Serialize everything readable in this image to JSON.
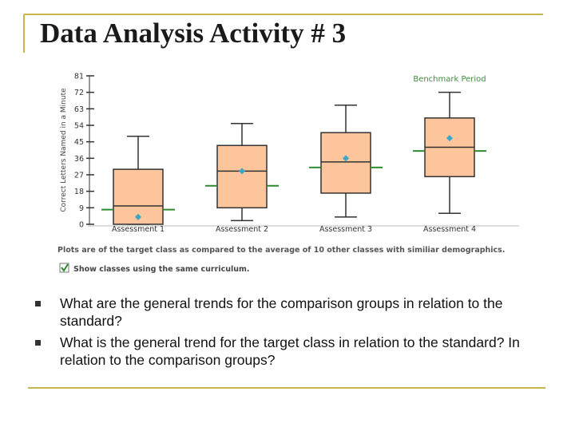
{
  "slide": {
    "title": "Data Analysis Activity # 3",
    "bullets": [
      "What are the general trends for the comparison groups in relation to the standard?",
      "What is the general trend for the target class in relation to the standard? In relation to the comparison groups?"
    ]
  },
  "chart_data": {
    "type": "box",
    "ylabel": "Correct Letters Named in a Minute",
    "annotation": "Benchmark Period",
    "footnote": "Plots are of the target class as compared to the average of 10 other classes with similiar demographics.",
    "checkbox_label": "Show classes using the same curriculum.",
    "categories": [
      "Assessment 1",
      "Assessment 2",
      "Assessment 3",
      "Assessment 4"
    ],
    "boxes": [
      {
        "min": 0,
        "q1": 0,
        "median": 10,
        "q3": 30,
        "max": 48,
        "mean": 4
      },
      {
        "min": 2,
        "q1": 9,
        "median": 29,
        "q3": 43,
        "max": 55,
        "mean": 29
      },
      {
        "min": 4,
        "q1": 17,
        "median": 34,
        "q3": 50,
        "max": 65,
        "mean": 36
      },
      {
        "min": 6,
        "q1": 26,
        "median": 42,
        "q3": 58,
        "max": 72,
        "mean": 47
      }
    ],
    "comparison": [
      8,
      21,
      31,
      40
    ],
    "box_color": "#fcc59b",
    "mean_color": "#3aa6c8",
    "comparison_color": "#2e8a2e",
    "ylim": [
      0,
      81
    ],
    "yticks": [
      0,
      9,
      18,
      27,
      36,
      45,
      54,
      63,
      72,
      81
    ]
  }
}
